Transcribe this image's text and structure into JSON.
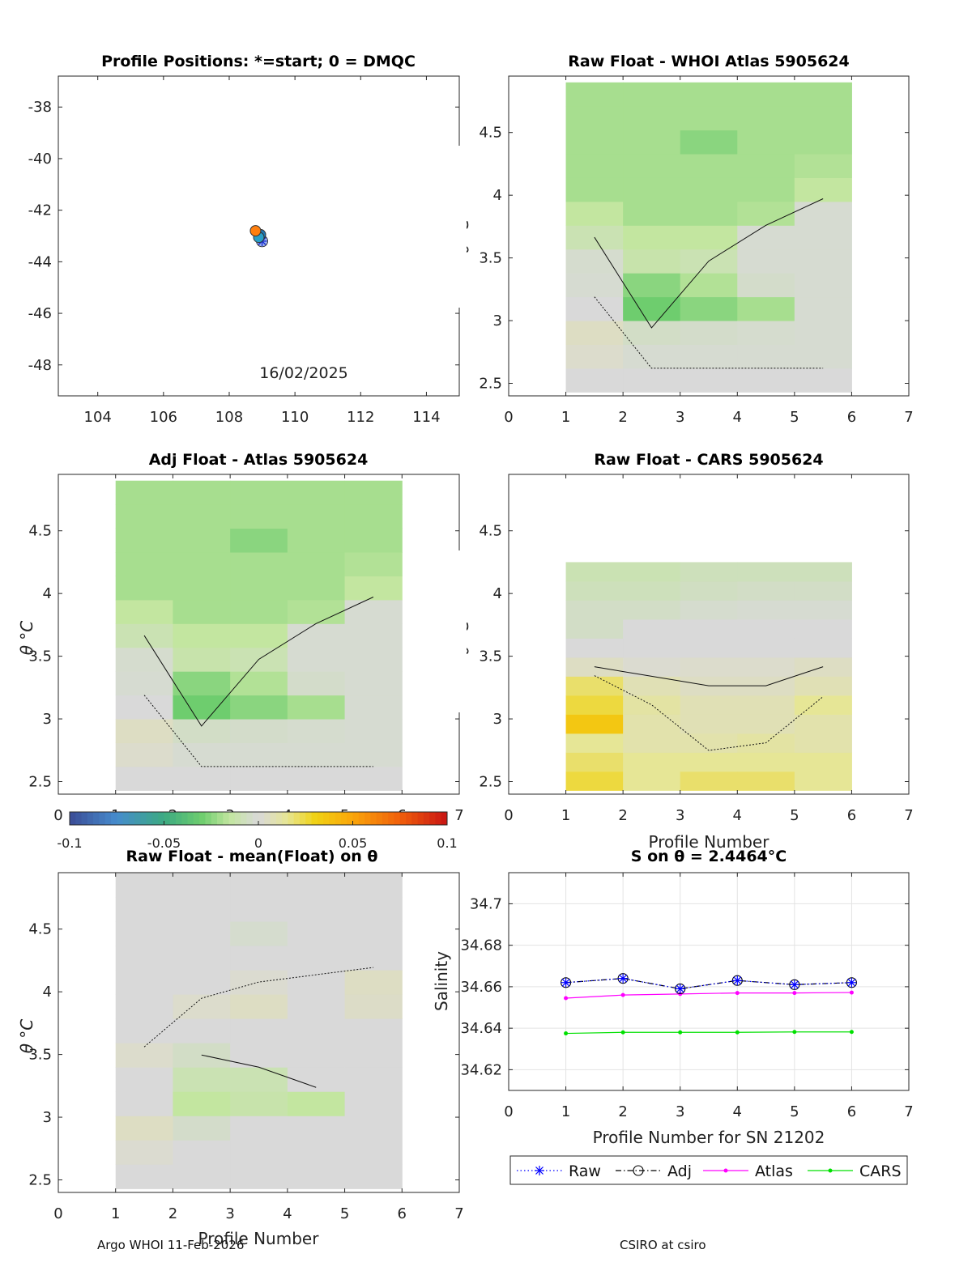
{
  "footer": {
    "left": "Argo WHOI 11-Feb-2026",
    "right": "CSIRO at csiro"
  },
  "colorbar": {
    "range": [
      -0.1,
      0.1
    ],
    "ticks": [
      "-0.1",
      "-0.05",
      "0",
      "0.05",
      "0.1"
    ]
  },
  "chart_data": [
    {
      "id": "positions",
      "type": "scatter",
      "title": "Profile Positions: *=start; 0 = DMQC",
      "xlim": [
        102.8,
        115.0
      ],
      "ylim": [
        -49.2,
        -36.8
      ],
      "xticks": [
        "104",
        "106",
        "108",
        "110",
        "112",
        "114"
      ],
      "yticks": [
        "-38",
        "-40",
        "-42",
        "-44",
        "-46",
        "-48"
      ],
      "annotation": "16/02/2025",
      "points": [
        {
          "lon": 109.0,
          "lat": -43.2,
          "marker": "start",
          "color": "#3355dd"
        },
        {
          "lon": 108.95,
          "lat": -42.95,
          "marker": "circle",
          "color": "#1f77b4"
        },
        {
          "lon": 108.9,
          "lat": -43.05,
          "marker": "circle",
          "color": "#2aa0c8"
        },
        {
          "lon": 108.8,
          "lat": -42.8,
          "marker": "circle",
          "color": "#ff7f0e"
        }
      ]
    },
    {
      "id": "raw-atlas",
      "type": "heatmap",
      "title": "Raw Float - WHOI Atlas  5905624",
      "xlabel": "",
      "ylabel": "θ °C",
      "xlim": [
        0,
        7
      ],
      "ylim": [
        2.4,
        4.95
      ],
      "xticks": [
        "0",
        "1",
        "2",
        "3",
        "4",
        "5",
        "6",
        "7"
      ],
      "yticks": [
        "2.5",
        "3",
        "3.5",
        "4",
        "4.5"
      ],
      "profiles": [
        1,
        2,
        3,
        4,
        5,
        6
      ],
      "theta_top": 4.9,
      "field_values": [
        [
          0.0,
          0.003,
          0.005,
          0.0,
          -0.002,
          -0.003,
          -0.01,
          -0.015,
          -0.02,
          -0.02,
          -0.02,
          -0.02,
          -0.02
        ],
        [
          0.0,
          -0.002,
          -0.005,
          -0.03,
          -0.025,
          -0.012,
          -0.015,
          -0.02,
          -0.02,
          -0.02,
          -0.02,
          -0.02,
          -0.02
        ],
        [
          0.0,
          -0.002,
          -0.004,
          -0.025,
          -0.018,
          -0.01,
          -0.015,
          -0.02,
          -0.02,
          -0.02,
          -0.025,
          -0.02,
          -0.02
        ],
        [
          0.0,
          -0.002,
          -0.003,
          -0.02,
          -0.004,
          -0.002,
          -0.002,
          -0.018,
          -0.02,
          -0.02,
          -0.02,
          -0.02,
          -0.02
        ],
        [
          0.0,
          -0.002,
          -0.002,
          -0.002,
          -0.002,
          -0.002,
          -0.002,
          -0.002,
          -0.015,
          -0.018,
          -0.02,
          -0.02,
          -0.02
        ],
        [
          0.0,
          -0.002,
          -0.002,
          -0.003,
          -0.002,
          -0.002,
          -0.002,
          -0.002,
          -0.01,
          -0.015,
          -0.018,
          -0.02,
          -0.02
        ]
      ]
    },
    {
      "id": "adj-atlas",
      "type": "heatmap",
      "title": "Adj Float - Atlas  5905624",
      "xlabel": "",
      "ylabel": "θ °C",
      "xlim": [
        0,
        7
      ],
      "ylim": [
        2.4,
        4.95
      ],
      "xticks": [
        "0",
        "1",
        "2",
        "3",
        "4",
        "5",
        "6",
        "7"
      ],
      "yticks": [
        "2.5",
        "3",
        "3.5",
        "4",
        "4.5"
      ],
      "profiles": [
        1,
        2,
        3,
        4,
        5,
        6
      ],
      "theta_top": 4.9,
      "field_values": [
        [
          0.0,
          0.003,
          0.005,
          0.0,
          -0.002,
          -0.003,
          -0.01,
          -0.015,
          -0.02,
          -0.02,
          -0.02,
          -0.02,
          -0.02
        ],
        [
          0.0,
          -0.002,
          -0.005,
          -0.03,
          -0.025,
          -0.012,
          -0.015,
          -0.02,
          -0.02,
          -0.02,
          -0.02,
          -0.02,
          -0.02
        ],
        [
          0.0,
          -0.002,
          -0.004,
          -0.025,
          -0.018,
          -0.01,
          -0.015,
          -0.02,
          -0.02,
          -0.02,
          -0.025,
          -0.02,
          -0.02
        ],
        [
          0.0,
          -0.002,
          -0.003,
          -0.02,
          -0.004,
          -0.002,
          -0.002,
          -0.018,
          -0.02,
          -0.02,
          -0.02,
          -0.02,
          -0.02
        ],
        [
          0.0,
          -0.002,
          -0.002,
          -0.002,
          -0.002,
          -0.002,
          -0.002,
          -0.002,
          -0.015,
          -0.018,
          -0.02,
          -0.02,
          -0.02
        ],
        [
          0.0,
          -0.002,
          -0.002,
          -0.003,
          -0.002,
          -0.002,
          -0.002,
          -0.002,
          -0.01,
          -0.015,
          -0.018,
          -0.02,
          -0.02
        ]
      ]
    },
    {
      "id": "raw-cars",
      "type": "heatmap",
      "title": "Raw Float - CARS  5905624",
      "xlabel": "Profile Number",
      "ylabel": "θ °C",
      "xlim": [
        0,
        7
      ],
      "ylim": [
        2.4,
        4.95
      ],
      "xticks": [
        "0",
        "1",
        "2",
        "3",
        "4",
        "5",
        "6",
        "7"
      ],
      "yticks": [
        "2.5",
        "3",
        "3.5",
        "4",
        "4.5"
      ],
      "profiles": [
        1,
        2,
        3,
        4,
        5,
        6
      ],
      "theta_top": 4.25,
      "field_values": [
        [
          0.025,
          0.02,
          0.015,
          0.035,
          0.025,
          0.02,
          0.005,
          0.0,
          -0.005,
          -0.005,
          -0.008,
          -0.01
        ],
        [
          0.015,
          0.015,
          0.01,
          0.01,
          0.012,
          0.008,
          0.002,
          0.0,
          0.0,
          -0.005,
          -0.008,
          -0.01
        ],
        [
          0.02,
          0.015,
          0.01,
          0.008,
          0.008,
          0.005,
          0.003,
          0.0,
          0.0,
          -0.003,
          -0.006,
          -0.008
        ],
        [
          0.02,
          0.015,
          0.012,
          0.008,
          0.008,
          0.005,
          0.003,
          0.0,
          0.0,
          -0.002,
          -0.005,
          -0.008
        ],
        [
          0.015,
          0.015,
          0.01,
          0.01,
          0.015,
          0.008,
          0.005,
          0.0,
          0.0,
          -0.002,
          -0.005,
          -0.008
        ],
        [
          0.015,
          0.015,
          0.012,
          0.012,
          0.018,
          0.01,
          0.005,
          0.0,
          0.0,
          -0.002,
          -0.005,
          -0.008
        ]
      ]
    },
    {
      "id": "raw-mean",
      "type": "heatmap",
      "title": "Raw Float - mean(Float) on θ",
      "xlabel": "Profile Number",
      "ylabel": "θ °C",
      "xlim": [
        0,
        7
      ],
      "ylim": [
        2.4,
        4.95
      ],
      "xticks": [
        "0",
        "1",
        "2",
        "3",
        "4",
        "5",
        "6",
        "7"
      ],
      "yticks": [
        "2.5",
        "3",
        "3.5",
        "4",
        "4.5"
      ],
      "profiles": [
        1,
        2,
        3,
        4,
        5,
        6
      ],
      "theta_top": 4.95,
      "field_values": [
        [
          0.0,
          0.002,
          0.005,
          0.0,
          0.0,
          0.003,
          0.0,
          0.0,
          0.0,
          0.0,
          0.0,
          0.0,
          0.0
        ],
        [
          0.0,
          0.0,
          -0.004,
          -0.015,
          -0.01,
          -0.005,
          0.0,
          0.003,
          0.0,
          0.0,
          0.0,
          0.0,
          0.0
        ],
        [
          0.0,
          0.0,
          0.0,
          -0.012,
          -0.01,
          0.0,
          0.0,
          0.005,
          0.002,
          0.0,
          -0.003,
          0.0,
          0.0
        ],
        [
          0.0,
          0.0,
          0.0,
          -0.015,
          0.0,
          0.0,
          0.0,
          0.0,
          0.0,
          0.0,
          0.0,
          0.0,
          0.0
        ],
        [
          0.0,
          0.0,
          0.0,
          0.0,
          0.0,
          0.0,
          0.0,
          0.004,
          0.005,
          0.0,
          0.0,
          0.0,
          0.0
        ],
        [
          0.0,
          0.0,
          0.0,
          0.0,
          0.0,
          0.0,
          0.0,
          0.004,
          0.005,
          0.0,
          0.0,
          0.0,
          0.0
        ]
      ]
    },
    {
      "id": "salinity",
      "type": "line",
      "title": "S on θ = 2.4464°C",
      "xlabel": "Profile Number for SN 21202",
      "ylabel": "Salinity",
      "xlim": [
        0,
        7
      ],
      "ylim": [
        34.61,
        34.715
      ],
      "xticks": [
        "0",
        "1",
        "2",
        "3",
        "4",
        "5",
        "6",
        "7"
      ],
      "yticks": [
        "34.62",
        "34.64",
        "34.66",
        "34.68",
        "34.7"
      ],
      "grid": true,
      "legend_position": "bottom",
      "x": [
        1,
        2,
        3,
        4,
        5,
        6
      ],
      "series": [
        {
          "name": "Raw",
          "values": [
            34.662,
            34.664,
            34.659,
            34.663,
            34.661,
            34.662
          ],
          "color": "#0000ff",
          "style": "dotted",
          "marker": "star"
        },
        {
          "name": "Adj",
          "values": [
            34.662,
            34.664,
            34.659,
            34.663,
            34.661,
            34.662
          ],
          "color": "#000000",
          "style": "dashdot",
          "marker": "circle"
        },
        {
          "name": "Atlas",
          "values": [
            34.6545,
            34.656,
            34.6565,
            34.657,
            34.657,
            34.6572
          ],
          "color": "#ff00ff",
          "style": "solid",
          "marker": "dot"
        },
        {
          "name": "CARS",
          "values": [
            34.6375,
            34.638,
            34.638,
            34.638,
            34.6382,
            34.6382
          ],
          "color": "#00e000",
          "style": "solid",
          "marker": "dot"
        }
      ]
    }
  ]
}
